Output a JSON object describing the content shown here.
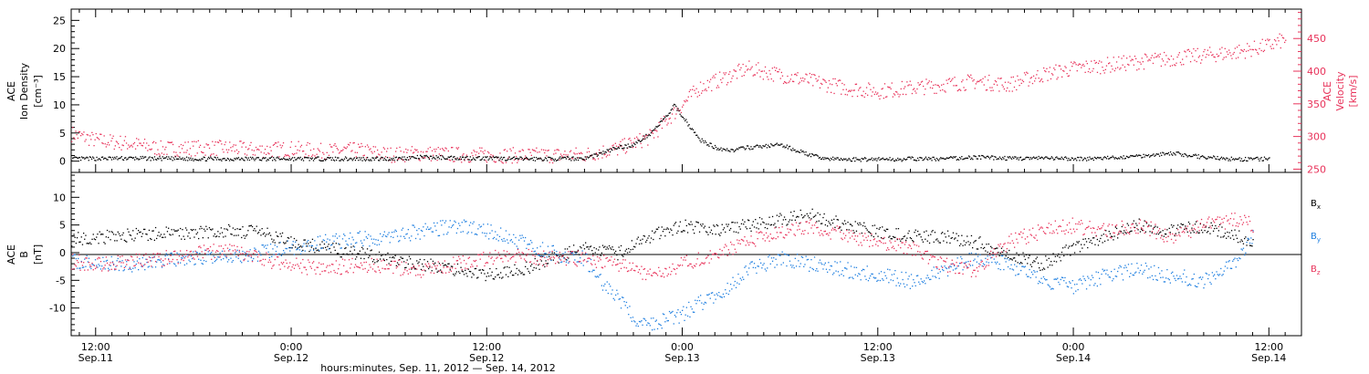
{
  "colors": {
    "black": "#000000",
    "pink": "#e8325a",
    "blue": "#1f7fe0"
  },
  "chart_data": [
    {
      "type": "scatter",
      "panel": "top",
      "left_axis_label": [
        "ACE",
        "Ion Density",
        "[cm⁻³]"
      ],
      "right_axis_label": [
        "ACE",
        "Velocity",
        "[km/s]"
      ],
      "left_ylim": [
        -2,
        27
      ],
      "left_ticks": [
        0,
        5,
        10,
        15,
        20,
        25
      ],
      "right_ylim": [
        245,
        495
      ],
      "right_ticks": [
        250,
        300,
        350,
        400,
        450
      ],
      "series": [
        {
          "name": "Ion Density",
          "axis": "left",
          "color": "black",
          "x": [
            10.5,
            14,
            18,
            22,
            26,
            30,
            32,
            34,
            36,
            38,
            40,
            42,
            43,
            44,
            45,
            46,
            47,
            47.5,
            48,
            48.5,
            49,
            50,
            51,
            52,
            54,
            56,
            57,
            58,
            59,
            60,
            61,
            62,
            64,
            66,
            68,
            70,
            72,
            74,
            76,
            78,
            80,
            82,
            84
          ],
          "y": [
            0.5,
            0.6,
            0.5,
            0.5,
            0.5,
            0.5,
            0.8,
            0.7,
            0.6,
            0.5,
            0.5,
            0.6,
            1.5,
            2.5,
            3,
            5,
            8,
            10,
            8,
            6,
            4,
            2.5,
            2,
            2.5,
            3,
            1,
            0.5,
            0.4,
            0.4,
            0.5,
            0.4,
            0.5,
            0.5,
            0.8,
            0.6,
            0.6,
            0.5,
            0.6,
            1,
            1.5,
            0.8,
            0.4,
            0.5
          ]
        },
        {
          "name": "Velocity",
          "axis": "right",
          "color": "pink",
          "x": [
            10.5,
            12,
            14,
            16,
            18,
            20,
            22,
            24,
            26,
            28,
            30,
            32,
            34,
            36,
            38,
            40,
            42,
            44,
            46,
            47,
            48,
            49,
            50,
            52,
            54,
            56,
            58,
            60,
            62,
            64,
            66,
            68,
            70,
            72,
            74,
            76,
            78,
            80,
            82,
            84,
            85
          ],
          "y": [
            305,
            295,
            290,
            282,
            283,
            283,
            280,
            282,
            278,
            280,
            273,
            275,
            273,
            272,
            272,
            272,
            273,
            282,
            300,
            325,
            350,
            375,
            385,
            405,
            395,
            385,
            375,
            370,
            375,
            380,
            385,
            380,
            395,
            405,
            410,
            415,
            420,
            425,
            430,
            440,
            450
          ]
        }
      ]
    },
    {
      "type": "scatter",
      "panel": "bottom",
      "left_axis_label": [
        "ACE",
        "B",
        "[nT]"
      ],
      "ylim": [
        -15,
        14.5
      ],
      "y_ticks": [
        -10,
        -5,
        0,
        5,
        10
      ],
      "zero_line": true,
      "xlabel": "hours:minutes, Sep. 11, 2012 — Sep. 14, 2012",
      "xlim": [
        10.5,
        86
      ],
      "x_ticks": [
        {
          "x": 12,
          "time": "12:00",
          "date": "Sep.11"
        },
        {
          "x": 24,
          "time": "0:00",
          "date": "Sep.12"
        },
        {
          "x": 36,
          "time": "12:00",
          "date": "Sep.12"
        },
        {
          "x": 48,
          "time": "0:00",
          "date": "Sep.13"
        },
        {
          "x": 60,
          "time": "12:00",
          "date": "Sep.13"
        },
        {
          "x": 72,
          "time": "0:00",
          "date": "Sep.14"
        },
        {
          "x": 84,
          "time": "12:00",
          "date": "Sep.14"
        }
      ],
      "series": [
        {
          "name": "B",
          "sub": "x",
          "color": "black",
          "x": [
            10.5,
            12,
            14,
            16,
            18,
            20,
            22,
            24,
            26,
            28,
            30,
            32,
            34,
            36,
            38,
            40,
            42,
            44,
            46,
            48,
            50,
            52,
            54,
            56,
            58,
            60,
            62,
            64,
            66,
            68,
            70,
            72,
            74,
            76,
            78,
            80,
            82,
            83
          ],
          "y": [
            2.5,
            2.8,
            3.2,
            3.5,
            3.8,
            4,
            3.8,
            2,
            1,
            0,
            -1,
            -2,
            -3,
            -4,
            -3,
            -1,
            1,
            0,
            3,
            5,
            4,
            5,
            6,
            7,
            5,
            4,
            3,
            3,
            2,
            0,
            -2,
            1,
            3,
            5,
            4,
            5,
            3,
            2
          ]
        },
        {
          "name": "B",
          "sub": "y",
          "color": "blue",
          "x": [
            10.5,
            12,
            14,
            16,
            18,
            20,
            22,
            24,
            26,
            28,
            30,
            32,
            34,
            36,
            38,
            40,
            42,
            43,
            44,
            45,
            46,
            47,
            48,
            49,
            50,
            51,
            52,
            54,
            56,
            58,
            60,
            62,
            64,
            66,
            68,
            70,
            72,
            74,
            76,
            78,
            80,
            82,
            83
          ],
          "y": [
            -1.5,
            -2,
            -2,
            -1.5,
            -1,
            -0.5,
            0,
            1,
            2,
            2.5,
            3,
            4,
            5,
            4,
            2,
            0,
            -1,
            -5,
            -8,
            -12,
            -13,
            -12,
            -11,
            -9,
            -8,
            -6,
            -3,
            -1,
            -2,
            -3,
            -4,
            -5,
            -3,
            -1,
            -2,
            -5,
            -6,
            -4,
            -3,
            -4,
            -5,
            -2,
            3
          ]
        },
        {
          "name": "B",
          "sub": "z",
          "color": "pink",
          "x": [
            10.5,
            12,
            14,
            16,
            18,
            20,
            22,
            24,
            26,
            28,
            30,
            32,
            34,
            36,
            38,
            40,
            42,
            44,
            46,
            48,
            50,
            52,
            54,
            56,
            58,
            60,
            62,
            64,
            66,
            68,
            70,
            72,
            74,
            76,
            78,
            80,
            82,
            83
          ],
          "y": [
            -1.5,
            -2,
            -1.5,
            -1,
            0,
            0.5,
            -1,
            -2,
            -3,
            -2,
            -2.5,
            -3,
            -2,
            -1,
            -0.5,
            -1,
            -1,
            -2,
            -4,
            -2,
            0,
            2,
            4,
            5,
            3,
            2,
            1,
            -2,
            -3,
            2,
            4,
            5,
            4,
            5,
            3,
            5,
            6,
            5
          ]
        }
      ]
    }
  ]
}
